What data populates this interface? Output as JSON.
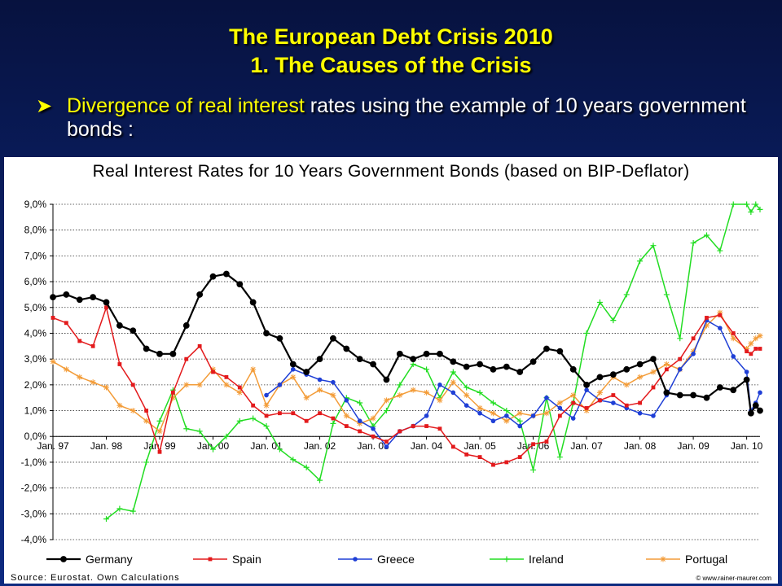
{
  "slide": {
    "title_line1": "The European Debt Crisis 2010",
    "title_line2": "1. The Causes of the Crisis",
    "bullet_highlight": "Divergence of real interest",
    "bullet_rest": " rates using the example of 10 years government bonds :",
    "bullet_symbol": "➤"
  },
  "footer": {
    "source": "Source: Eurostat. Own Calculations",
    "copyright": "© www.rainer-maurer.com"
  },
  "chart_data": {
    "type": "line",
    "title": "Real Interest Rates for 10 Years Government Bonds (based on BIP-Deflator)",
    "xlabel": "",
    "ylabel": "",
    "x_range": [
      1997.0,
      2010.25
    ],
    "ylim": [
      -4.0,
      9.0
    ],
    "y_ticks": [
      9.0,
      8.0,
      7.0,
      6.0,
      5.0,
      4.0,
      3.0,
      2.0,
      1.0,
      0.0,
      -1.0,
      -2.0,
      -3.0,
      -4.0
    ],
    "y_tick_labels": [
      "9,0%",
      "8,0%",
      "7,0%",
      "6,0%",
      "5,0%",
      "4,0%",
      "3,0%",
      "2,0%",
      "1,0%",
      "0,0%",
      "-1,0%",
      "-2,0%",
      "-3,0%",
      "-4,0%"
    ],
    "x_tick_labels": [
      "Jan. 97",
      "Jan. 98",
      "Jan. 99",
      "Jan. 00",
      "Jan. 01",
      "Jan. 02",
      "Jan. 03",
      "Jan. 04",
      "Jan. 05",
      "Jan. 06",
      "Jan. 07",
      "Jan. 08",
      "Jan. 09",
      "Jan. 10"
    ],
    "x_tick_values": [
      1997,
      1998,
      1999,
      2000,
      2001,
      2002,
      2003,
      2004,
      2005,
      2006,
      2007,
      2008,
      2009,
      2010
    ],
    "grid": true,
    "legend_position": "bottom",
    "series": [
      {
        "name": "Germany",
        "color": "#000000",
        "marker": "circle",
        "points": [
          [
            1997.0,
            5.4
          ],
          [
            1997.25,
            5.5
          ],
          [
            1997.5,
            5.3
          ],
          [
            1997.75,
            5.4
          ],
          [
            1998.0,
            5.2
          ],
          [
            1998.25,
            4.3
          ],
          [
            1998.5,
            4.1
          ],
          [
            1998.75,
            3.4
          ],
          [
            1999.0,
            3.2
          ],
          [
            1999.25,
            3.2
          ],
          [
            1999.5,
            4.3
          ],
          [
            1999.75,
            5.5
          ],
          [
            2000.0,
            6.2
          ],
          [
            2000.25,
            6.3
          ],
          [
            2000.5,
            5.9
          ],
          [
            2000.75,
            5.2
          ],
          [
            2001.0,
            4.0
          ],
          [
            2001.25,
            3.8
          ],
          [
            2001.5,
            2.8
          ],
          [
            2001.75,
            2.5
          ],
          [
            2002.0,
            3.0
          ],
          [
            2002.25,
            3.8
          ],
          [
            2002.5,
            3.4
          ],
          [
            2002.75,
            3.0
          ],
          [
            2003.0,
            2.8
          ],
          [
            2003.25,
            2.2
          ],
          [
            2003.5,
            3.2
          ],
          [
            2003.75,
            3.0
          ],
          [
            2004.0,
            3.2
          ],
          [
            2004.25,
            3.2
          ],
          [
            2004.5,
            2.9
          ],
          [
            2004.75,
            2.7
          ],
          [
            2005.0,
            2.8
          ],
          [
            2005.25,
            2.6
          ],
          [
            2005.5,
            2.7
          ],
          [
            2005.75,
            2.5
          ],
          [
            2006.0,
            2.9
          ],
          [
            2006.25,
            3.4
          ],
          [
            2006.5,
            3.3
          ],
          [
            2006.75,
            2.6
          ],
          [
            2007.0,
            2.0
          ],
          [
            2007.25,
            2.3
          ],
          [
            2007.5,
            2.4
          ],
          [
            2007.75,
            2.6
          ],
          [
            2008.0,
            2.8
          ],
          [
            2008.25,
            3.0
          ],
          [
            2008.5,
            1.7
          ],
          [
            2008.75,
            1.6
          ],
          [
            2009.0,
            1.6
          ],
          [
            2009.25,
            1.5
          ],
          [
            2009.5,
            1.9
          ],
          [
            2009.75,
            1.8
          ],
          [
            2010.0,
            2.2
          ],
          [
            2010.08,
            0.9
          ],
          [
            2010.17,
            1.2
          ],
          [
            2010.25,
            1.0
          ]
        ]
      },
      {
        "name": "Spain",
        "color": "#e31a1c",
        "marker": "square",
        "points": [
          [
            1997.0,
            4.6
          ],
          [
            1997.25,
            4.4
          ],
          [
            1997.5,
            3.7
          ],
          [
            1997.75,
            3.5
          ],
          [
            1998.0,
            5.0
          ],
          [
            1998.25,
            2.8
          ],
          [
            1998.5,
            2.0
          ],
          [
            1998.75,
            1.0
          ],
          [
            1999.0,
            -0.6
          ],
          [
            1999.25,
            1.7
          ],
          [
            1999.5,
            3.0
          ],
          [
            1999.75,
            3.5
          ],
          [
            2000.0,
            2.5
          ],
          [
            2000.25,
            2.3
          ],
          [
            2000.5,
            1.9
          ],
          [
            2000.75,
            1.2
          ],
          [
            2001.0,
            0.8
          ],
          [
            2001.25,
            0.9
          ],
          [
            2001.5,
            0.9
          ],
          [
            2001.75,
            0.6
          ],
          [
            2002.0,
            0.9
          ],
          [
            2002.25,
            0.7
          ],
          [
            2002.5,
            0.4
          ],
          [
            2002.75,
            0.2
          ],
          [
            2003.0,
            0.0
          ],
          [
            2003.25,
            -0.2
          ],
          [
            2003.5,
            0.2
          ],
          [
            2003.75,
            0.4
          ],
          [
            2004.0,
            0.4
          ],
          [
            2004.25,
            0.3
          ],
          [
            2004.5,
            -0.4
          ],
          [
            2004.75,
            -0.7
          ],
          [
            2005.0,
            -0.8
          ],
          [
            2005.25,
            -1.1
          ],
          [
            2005.5,
            -1.0
          ],
          [
            2005.75,
            -0.8
          ],
          [
            2006.0,
            -0.3
          ],
          [
            2006.25,
            -0.2
          ],
          [
            2006.5,
            0.8
          ],
          [
            2006.75,
            1.3
          ],
          [
            2007.0,
            1.1
          ],
          [
            2007.25,
            1.4
          ],
          [
            2007.5,
            1.6
          ],
          [
            2007.75,
            1.2
          ],
          [
            2008.0,
            1.3
          ],
          [
            2008.25,
            1.9
          ],
          [
            2008.5,
            2.6
          ],
          [
            2008.75,
            3.0
          ],
          [
            2009.0,
            3.8
          ],
          [
            2009.25,
            4.6
          ],
          [
            2009.5,
            4.7
          ],
          [
            2009.75,
            4.0
          ],
          [
            2010.0,
            3.3
          ],
          [
            2010.08,
            3.2
          ],
          [
            2010.17,
            3.4
          ],
          [
            2010.25,
            3.4
          ]
        ]
      },
      {
        "name": "Greece",
        "color": "#1f3fd6",
        "marker": "circle",
        "points": [
          [
            2001.0,
            1.6
          ],
          [
            2001.25,
            2.0
          ],
          [
            2001.5,
            2.6
          ],
          [
            2001.75,
            2.4
          ],
          [
            2002.0,
            2.2
          ],
          [
            2002.25,
            2.1
          ],
          [
            2002.5,
            1.4
          ],
          [
            2002.75,
            0.6
          ],
          [
            2003.0,
            0.3
          ],
          [
            2003.25,
            -0.4
          ],
          [
            2003.5,
            0.2
          ],
          [
            2003.75,
            0.4
          ],
          [
            2004.0,
            0.8
          ],
          [
            2004.25,
            2.0
          ],
          [
            2004.5,
            1.7
          ],
          [
            2004.75,
            1.2
          ],
          [
            2005.0,
            0.9
          ],
          [
            2005.25,
            0.6
          ],
          [
            2005.5,
            0.8
          ],
          [
            2005.75,
            0.4
          ],
          [
            2006.0,
            0.8
          ],
          [
            2006.25,
            1.5
          ],
          [
            2006.5,
            1.1
          ],
          [
            2006.75,
            0.7
          ],
          [
            2007.0,
            1.8
          ],
          [
            2007.25,
            1.4
          ],
          [
            2007.5,
            1.3
          ],
          [
            2007.75,
            1.1
          ],
          [
            2008.0,
            0.9
          ],
          [
            2008.25,
            0.8
          ],
          [
            2008.5,
            1.6
          ],
          [
            2008.75,
            2.6
          ],
          [
            2009.0,
            3.2
          ],
          [
            2009.25,
            4.5
          ],
          [
            2009.5,
            4.2
          ],
          [
            2009.75,
            3.1
          ],
          [
            2010.0,
            2.5
          ],
          [
            2010.08,
            1.0
          ],
          [
            2010.17,
            1.3
          ],
          [
            2010.25,
            1.7
          ]
        ]
      },
      {
        "name": "Ireland",
        "color": "#22dd22",
        "marker": "plus",
        "points": [
          [
            1998.0,
            -3.2
          ],
          [
            1998.25,
            -2.8
          ],
          [
            1998.5,
            -2.9
          ],
          [
            1998.75,
            -1.0
          ],
          [
            1999.0,
            0.6
          ],
          [
            1999.25,
            1.8
          ],
          [
            1999.5,
            0.3
          ],
          [
            1999.75,
            0.2
          ],
          [
            2000.0,
            -0.5
          ],
          [
            2000.25,
            0.0
          ],
          [
            2000.5,
            0.6
          ],
          [
            2000.75,
            0.7
          ],
          [
            2001.0,
            0.4
          ],
          [
            2001.25,
            -0.5
          ],
          [
            2001.5,
            -0.9
          ],
          [
            2001.75,
            -1.2
          ],
          [
            2002.0,
            -1.7
          ],
          [
            2002.25,
            0.5
          ],
          [
            2002.5,
            1.5
          ],
          [
            2002.75,
            1.3
          ],
          [
            2003.0,
            0.4
          ],
          [
            2003.25,
            1.0
          ],
          [
            2003.5,
            2.0
          ],
          [
            2003.75,
            2.8
          ],
          [
            2004.0,
            2.6
          ],
          [
            2004.25,
            1.5
          ],
          [
            2004.5,
            2.5
          ],
          [
            2004.75,
            1.9
          ],
          [
            2005.0,
            1.7
          ],
          [
            2005.25,
            1.3
          ],
          [
            2005.5,
            1.0
          ],
          [
            2005.75,
            0.6
          ],
          [
            2006.0,
            -1.3
          ],
          [
            2006.25,
            1.5
          ],
          [
            2006.5,
            -0.8
          ],
          [
            2006.75,
            1.3
          ],
          [
            2007.0,
            4.0
          ],
          [
            2007.25,
            5.2
          ],
          [
            2007.5,
            4.5
          ],
          [
            2007.75,
            5.5
          ],
          [
            2008.0,
            6.8
          ],
          [
            2008.25,
            7.4
          ],
          [
            2008.5,
            5.5
          ],
          [
            2008.75,
            3.8
          ],
          [
            2009.0,
            7.5
          ],
          [
            2009.25,
            7.8
          ],
          [
            2009.5,
            7.2
          ],
          [
            2009.75,
            9.0
          ],
          [
            2010.0,
            9.0
          ],
          [
            2010.08,
            8.7
          ],
          [
            2010.17,
            9.0
          ],
          [
            2010.25,
            8.8
          ]
        ]
      },
      {
        "name": "Portugal",
        "color": "#f39c38",
        "marker": "star",
        "points": [
          [
            1997.0,
            2.9
          ],
          [
            1997.25,
            2.6
          ],
          [
            1997.5,
            2.3
          ],
          [
            1997.75,
            2.1
          ],
          [
            1998.0,
            1.9
          ],
          [
            1998.25,
            1.2
          ],
          [
            1998.5,
            1.0
          ],
          [
            1998.75,
            0.6
          ],
          [
            1999.0,
            0.2
          ],
          [
            1999.25,
            1.5
          ],
          [
            1999.5,
            2.0
          ],
          [
            1999.75,
            2.0
          ],
          [
            2000.0,
            2.6
          ],
          [
            2000.25,
            2.0
          ],
          [
            2000.5,
            1.7
          ],
          [
            2000.75,
            2.6
          ],
          [
            2001.0,
            1.2
          ],
          [
            2001.25,
            2.0
          ],
          [
            2001.5,
            2.3
          ],
          [
            2001.75,
            1.5
          ],
          [
            2002.0,
            1.8
          ],
          [
            2002.25,
            1.6
          ],
          [
            2002.5,
            0.8
          ],
          [
            2002.75,
            0.5
          ],
          [
            2003.0,
            0.7
          ],
          [
            2003.25,
            1.4
          ],
          [
            2003.5,
            1.6
          ],
          [
            2003.75,
            1.8
          ],
          [
            2004.0,
            1.7
          ],
          [
            2004.25,
            1.4
          ],
          [
            2004.5,
            2.1
          ],
          [
            2004.75,
            1.6
          ],
          [
            2005.0,
            1.1
          ],
          [
            2005.25,
            0.9
          ],
          [
            2005.5,
            0.6
          ],
          [
            2005.75,
            0.9
          ],
          [
            2006.0,
            0.8
          ],
          [
            2006.25,
            0.9
          ],
          [
            2006.5,
            1.3
          ],
          [
            2006.75,
            1.6
          ],
          [
            2007.0,
            1.0
          ],
          [
            2007.25,
            1.7
          ],
          [
            2007.5,
            2.3
          ],
          [
            2007.75,
            2.0
          ],
          [
            2008.0,
            2.3
          ],
          [
            2008.25,
            2.5
          ],
          [
            2008.5,
            2.8
          ],
          [
            2008.75,
            2.6
          ],
          [
            2009.0,
            3.3
          ],
          [
            2009.25,
            4.3
          ],
          [
            2009.5,
            4.8
          ],
          [
            2009.75,
            3.8
          ],
          [
            2010.0,
            3.4
          ],
          [
            2010.08,
            3.6
          ],
          [
            2010.17,
            3.8
          ],
          [
            2010.25,
            3.9
          ]
        ]
      }
    ]
  }
}
